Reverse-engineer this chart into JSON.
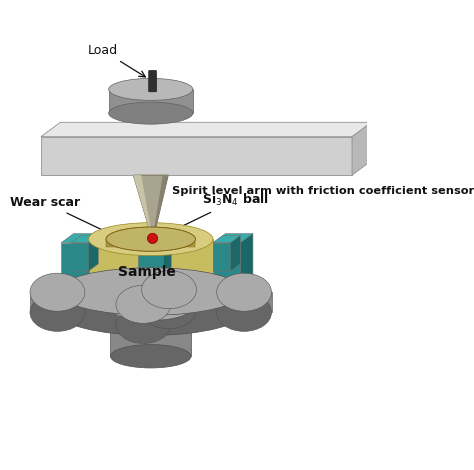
{
  "background_color": "#ffffff",
  "labels": {
    "load": "Load",
    "arm": "Spirit level arm with friction coefficient sensor",
    "wear_scar": "Wear scar",
    "ball": "Si$_3$N$_4$ ball",
    "sample": "Sample"
  },
  "colors": {
    "arm_front": "#d0d0d0",
    "arm_top": "#e8e8e8",
    "arm_side": "#b8b8b8",
    "weight_top": "#b8b8b8",
    "weight_side": "#909090",
    "weight_bottom": "#808080",
    "pin_light": "#c8c4a8",
    "pin_mid": "#a8a490",
    "pin_dark": "#888070",
    "sample_top": "#d8cc80",
    "sample_side": "#c8bc60",
    "sample_inner_top": "#c0b468",
    "sample_inner_wall": "#a89840",
    "teal_top": "#3aacac",
    "teal_front": "#2a8888",
    "teal_side": "#1a6868",
    "gray_top": "#aaaaaa",
    "gray_side": "#888888",
    "gray_dark": "#666666",
    "gray_lobe": "#999999",
    "red_ball": "#cc1111",
    "screw": "#303030",
    "black": "#111111",
    "text_color": "#111111",
    "white": "#ffffff"
  },
  "figsize": [
    4.74,
    4.7
  ],
  "dpi": 100
}
